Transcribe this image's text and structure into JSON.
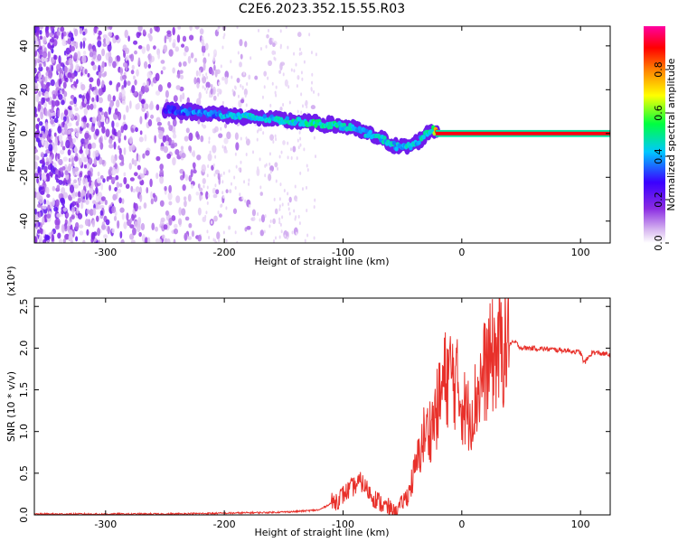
{
  "title": "C2E6.2023.352.15.55.R03",
  "chart_data": [
    {
      "type": "heatmap",
      "xlabel": "Height of straight line (km)",
      "ylabel": "Frequency (Hz)",
      "xlim": [
        -360,
        125
      ],
      "ylim": [
        -50,
        49
      ],
      "xticks": [
        -300,
        -200,
        -100,
        0,
        100
      ],
      "yticks": [
        -40,
        -20,
        0,
        20,
        40
      ],
      "colorbar": {
        "label": "Normalized spectral amplitude",
        "range": [
          0.0,
          1.0
        ],
        "ticks": [
          0.0,
          0.2,
          0.4,
          0.6,
          0.8
        ],
        "colormap": [
          "#ffffff",
          "#d8b8f0",
          "#8a2be2",
          "#3a00ff",
          "#00c8ff",
          "#00ff40",
          "#ffff00",
          "#ff8000",
          "#ff0000",
          "#ff00a0"
        ]
      },
      "signal_track": {
        "height_km": [
          -250,
          -230,
          -210,
          -190,
          -170,
          -150,
          -130,
          -110,
          -95,
          -80,
          -65,
          -55,
          -45,
          -35,
          -25,
          -20,
          -10,
          0,
          10,
          20,
          40,
          60,
          80,
          100,
          125
        ],
        "frequency_hz": [
          11,
          10,
          9,
          8,
          7,
          6,
          5,
          4,
          3,
          0,
          -3,
          -6,
          -6,
          -3,
          2,
          0,
          1,
          1,
          0,
          0,
          0,
          0,
          0,
          0,
          0
        ],
        "amplitude": [
          0.35,
          0.4,
          0.4,
          0.45,
          0.45,
          0.45,
          0.5,
          0.5,
          0.45,
          0.45,
          0.45,
          0.45,
          0.45,
          0.45,
          0.5,
          0.9,
          0.95,
          0.95,
          0.95,
          0.95,
          0.95,
          0.95,
          0.95,
          0.95,
          0.95
        ]
      }
    },
    {
      "type": "line",
      "xlabel": "Height of straight line (km)",
      "ylabel": "SNR (10 * v/v)",
      "y_multiplier": "(x10⁴)",
      "xlim": [
        -360,
        125
      ],
      "ylim": [
        0,
        2.6
      ],
      "xticks": [
        -300,
        -200,
        -100,
        0,
        100
      ],
      "yticks": [
        "0.0",
        "0.5",
        "1.0",
        "1.5",
        "2.0",
        "2.5"
      ],
      "series": [
        {
          "color": "#e8302a",
          "x": [
            -360,
            -300,
            -250,
            -200,
            -160,
            -140,
            -120,
            -105,
            -95,
            -85,
            -75,
            -65,
            -55,
            -45,
            -38,
            -32,
            -26,
            -20,
            -15,
            -10,
            -5,
            0,
            5,
            10,
            15,
            20,
            25,
            30,
            35,
            40,
            45,
            50,
            60,
            70,
            80,
            90,
            100,
            103,
            110,
            125
          ],
          "y": [
            0.01,
            0.01,
            0.01,
            0.02,
            0.03,
            0.04,
            0.06,
            0.18,
            0.3,
            0.4,
            0.22,
            0.1,
            0.05,
            0.25,
            0.6,
            0.95,
            1.05,
            1.3,
            1.6,
            1.7,
            1.6,
            1.35,
            1.2,
            1.3,
            1.55,
            1.75,
            1.88,
            1.95,
            2.0,
            2.05,
            2.07,
            2.0,
            2.0,
            1.99,
            1.98,
            1.97,
            1.95,
            1.82,
            1.95,
            1.92
          ]
        }
      ]
    }
  ]
}
